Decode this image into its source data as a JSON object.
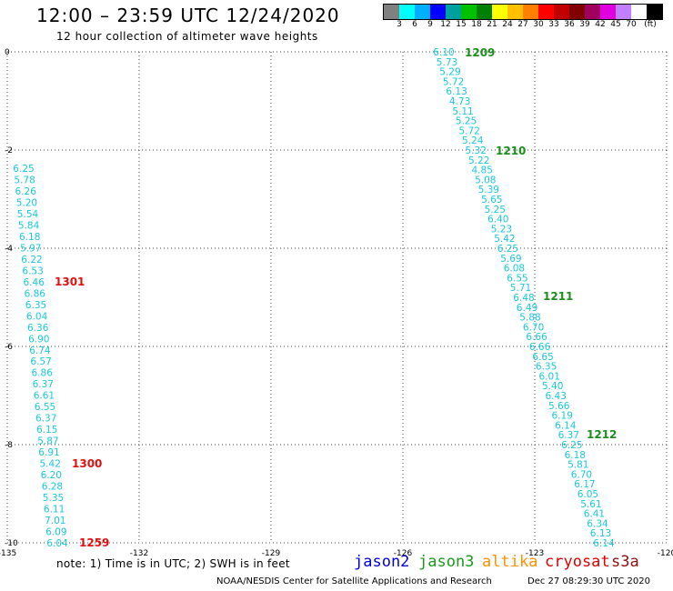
{
  "title": "12:00 – 23:59 UTC 12/24/2020",
  "subtitle": "12 hour collection of altimeter wave heights",
  "legend": {
    "colors": [
      "#808080",
      "#00ffff",
      "#00b0ff",
      "#0000ff",
      "#00a0a0",
      "#00c000",
      "#008000",
      "#ffff00",
      "#ffc000",
      "#ff8000",
      "#ff0000",
      "#c00000",
      "#800000",
      "#a00060",
      "#e000e0",
      "#c080ff",
      "#ffffff",
      "#000000"
    ],
    "labels": [
      "3",
      "6",
      "9",
      "12",
      "15",
      "18",
      "21",
      "24",
      "27",
      "30",
      "33",
      "36",
      "39",
      "42",
      "45",
      "70",
      "(ft)"
    ]
  },
  "map": {
    "ytick_labels": [
      "0",
      "-2",
      "-4",
      "-6",
      "-8",
      "-10"
    ],
    "xtick_labels": [
      "-135",
      "-132",
      "-129",
      "-126",
      "-123",
      "-120"
    ]
  },
  "tracks": [
    {
      "name": "track-right",
      "values": [
        "6.10",
        "5.73",
        "5.29",
        "5.72",
        "6.13",
        "4.73",
        "5.11",
        "5.25",
        "5.72",
        "5.24",
        "5.32",
        "5.22",
        "4.85",
        "5.08",
        "5.39",
        "5.65",
        "5.25",
        "6.40",
        "5.23",
        "5.42",
        "6.25",
        "5.69",
        "6.08",
        "6.55",
        "5.71",
        "6.48",
        "6.49",
        "5.88",
        "6.70",
        "6.66",
        "6.66",
        "6.65",
        "6.35",
        "6.01",
        "5.40",
        "6.43",
        "5.66",
        "6.19",
        "6.14",
        "6.37",
        "6.25",
        "6.18",
        "5.81",
        "6.70",
        "6.17",
        "6.05",
        "5.61",
        "6.41",
        "6.34",
        "6.13",
        "6.14"
      ]
    },
    {
      "name": "track-left",
      "values": [
        "6.25",
        "5.78",
        "6.26",
        "5.20",
        "5.54",
        "5.84",
        "6.18",
        "5.97",
        "6.22",
        "6.53",
        "6.46",
        "6.86",
        "6.35",
        "6.04",
        "6.36",
        "6.90",
        "6.74",
        "6.57",
        "6.86",
        "6.37",
        "6.61",
        "6.55",
        "6.37",
        "6.15",
        "5.87",
        "6.91",
        "5.42",
        "6.20",
        "6.28",
        "5.35",
        "6.11",
        "7.01",
        "6.09",
        "6.04"
      ]
    }
  ],
  "pass_labels": [
    {
      "text": "1209",
      "color": "green"
    },
    {
      "text": "1210",
      "color": "green"
    },
    {
      "text": "1211",
      "color": "green"
    },
    {
      "text": "1212",
      "color": "green"
    },
    {
      "text": "1301",
      "color": "red"
    },
    {
      "text": "1300",
      "color": "red"
    },
    {
      "text": "1259",
      "color": "red"
    }
  ],
  "note": "note: 1) Time is in UTC; 2) SWH is in feet",
  "satellites": [
    {
      "name": "jason2",
      "color": "#0000e0"
    },
    {
      "name": "jason3",
      "color": "#1a9a1a"
    },
    {
      "name": "altika",
      "color": "#ff9000"
    },
    {
      "name": "cryosat",
      "color": "#e00000"
    },
    {
      "name": "s3a",
      "color": "#8b1010"
    }
  ],
  "footer_credit": "NOAA/NESDIS Center for Satellite Applications and Research",
  "footer_date": "Dec 27 08:29:30 UTC 2020"
}
